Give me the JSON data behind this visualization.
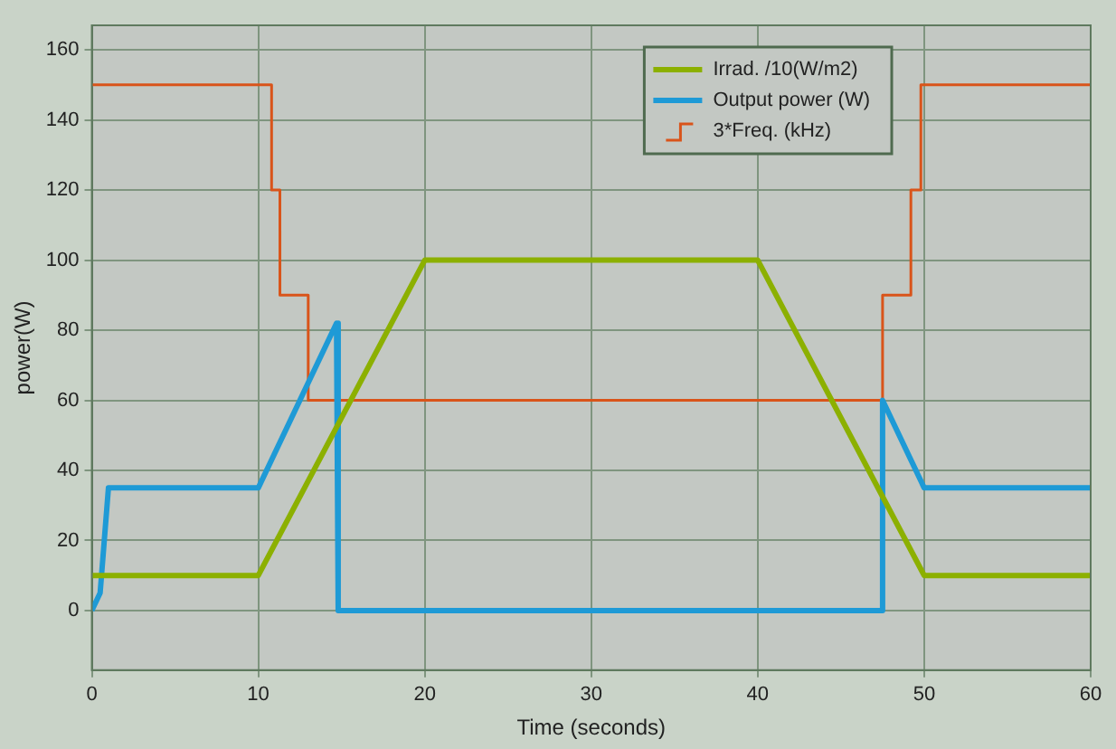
{
  "chart_data": {
    "type": "line",
    "xlabel": "Time (seconds)",
    "ylabel": "power(W)",
    "xlim": [
      0,
      60
    ],
    "xticks": [
      0,
      10,
      20,
      30,
      40,
      50,
      60
    ],
    "ylim": [
      -17,
      167
    ],
    "yticks": [
      0,
      20,
      40,
      60,
      80,
      100,
      120,
      140,
      160
    ],
    "grid": true,
    "legend": "top right",
    "marker": "none",
    "series": [
      {
        "name": "Irrad. /10(W/m2)",
        "color": "#8cb000",
        "x": [
          0,
          10,
          20,
          40,
          50,
          60
        ],
        "values": [
          10,
          10,
          100,
          100,
          10,
          10
        ]
      },
      {
        "name": "Output power (W)",
        "color": "#1e9ad6",
        "x": [
          0,
          0.5,
          1,
          10,
          14.7,
          14.8,
          47.4,
          47.5,
          50,
          60
        ],
        "values": [
          0,
          5,
          35,
          35,
          82,
          0,
          0,
          60,
          35,
          35
        ]
      },
      {
        "name": "3*Freq. (kHz)",
        "type": "step",
        "color": "#d9541a",
        "x": [
          0,
          10.8,
          11.3,
          13,
          47.5,
          49.2,
          49.8,
          60
        ],
        "values": [
          150,
          120,
          90,
          60,
          90,
          120,
          150,
          150
        ]
      }
    ]
  }
}
